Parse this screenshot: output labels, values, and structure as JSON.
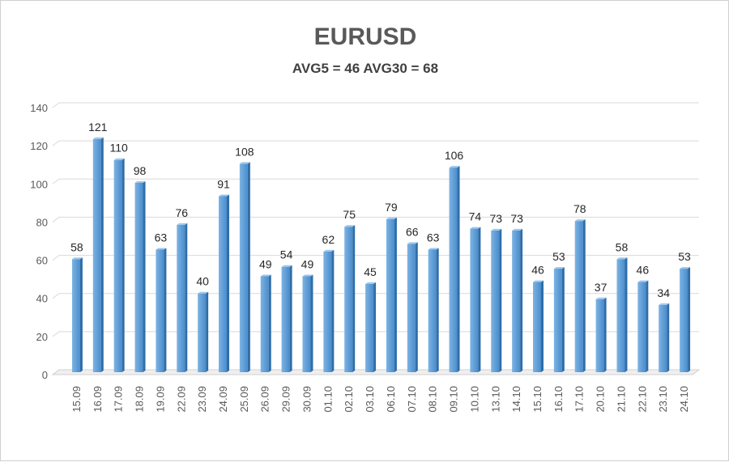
{
  "chart_data": {
    "type": "bar",
    "title": "EURUSD",
    "subtitle": "AVG5 = 46 AVG30 = 68",
    "xlabel": "",
    "ylabel": "",
    "ylim": [
      0,
      140
    ],
    "yticks": [
      0,
      20,
      40,
      60,
      80,
      100,
      120,
      140
    ],
    "grid": true,
    "categories": [
      "15.09",
      "16.09",
      "17.09",
      "18.09",
      "19.09",
      "22.09",
      "23.09",
      "24.09",
      "25.09",
      "26.09",
      "29.09",
      "30.09",
      "01.10",
      "02.10",
      "03.10",
      "06.10",
      "07.10",
      "08.10",
      "09.10",
      "10.10",
      "13.10",
      "14.10",
      "15.10",
      "16.10",
      "17.10",
      "20.10",
      "21.10",
      "22.10",
      "23.10",
      "24.10"
    ],
    "values": [
      58,
      121,
      110,
      98,
      63,
      76,
      40,
      91,
      108,
      49,
      54,
      49,
      62,
      75,
      45,
      79,
      66,
      63,
      106,
      74,
      73,
      73,
      46,
      53,
      78,
      37,
      58,
      46,
      34,
      53
    ],
    "bar_color": "#5B9BD5"
  }
}
